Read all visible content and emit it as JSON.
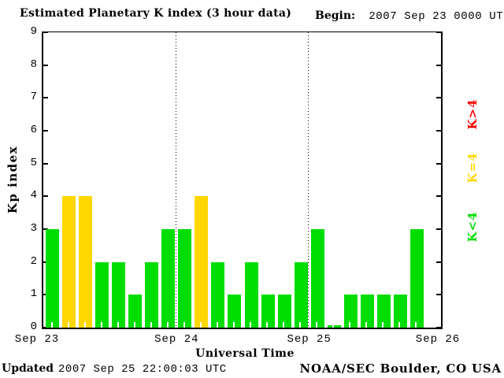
{
  "header": {
    "title": "Estimated Planetary K index (3 hour data)",
    "begin_label": "Begin:",
    "begin_value": "2007 Sep 23 0000 UTC"
  },
  "chart_data": {
    "type": "bar",
    "title": "Estimated Planetary K index (3 hour data)",
    "xlabel": "Universal Time",
    "ylabel": "Kp index",
    "ylim": [
      0,
      9
    ],
    "yticks": [
      0,
      1,
      2,
      3,
      4,
      5,
      6,
      7,
      8,
      9
    ],
    "x_day_labels": [
      "Sep 23",
      "Sep 24",
      "Sep 25",
      "Sep 26"
    ],
    "begin_time": "2007 Sep 23 0000 UTC",
    "interval_hours": 3,
    "slots_per_day": 8,
    "days_shown": 3,
    "values": [
      3,
      4,
      4,
      2,
      2,
      1,
      2,
      3,
      3,
      4,
      2,
      1,
      2,
      1,
      1,
      2,
      3,
      0,
      1,
      1,
      1,
      1,
      3
    ],
    "bar_colors": {
      "k_below_4": "#00dd00",
      "k_equal_4": "#ffd700",
      "k_above_4": "#ff0000"
    },
    "grid": "vertical dotted lines at day boundaries",
    "legend_position": "right side, labels rotated 90deg"
  },
  "legend": [
    {
      "label": "K>4",
      "color": "#ff0000"
    },
    {
      "label": "K=4",
      "color": "#ffd700"
    },
    {
      "label": "K<4",
      "color": "#00dd00"
    }
  ],
  "footer": {
    "updated_label": "Updated",
    "updated_value": "2007 Sep 25 22:00:03 UTC",
    "credit": "NOAA/SEC Boulder, CO USA"
  }
}
